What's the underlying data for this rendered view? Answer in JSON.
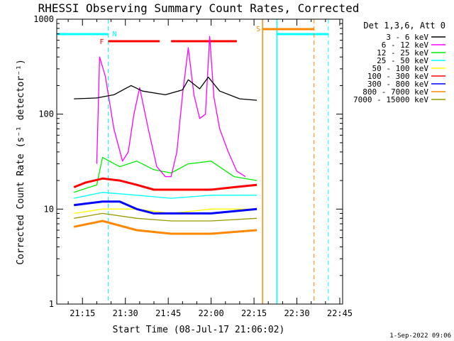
{
  "chart_data": {
    "type": "line",
    "title": "RHESSI Observing Summary Count Rates, Corrected",
    "xlabel": "Start Time (08-Jul-17 21:06:02)",
    "ylabel": "Corrected Count Rate (s⁻¹ detector⁻¹)",
    "timestamp": "1-Sep-2022 09:06",
    "y_scale": "log",
    "ylim": [
      1,
      1000
    ],
    "xlim": [
      "21:06",
      "22:46"
    ],
    "x_ticks": [
      "21:15",
      "21:30",
      "21:45",
      "22:00",
      "22:15",
      "22:30",
      "22:45"
    ],
    "y_ticks": [
      {
        "value": 1,
        "label": "1"
      },
      {
        "value": 10,
        "label": "10"
      },
      {
        "value": 100,
        "label": "100"
      },
      {
        "value": 1000,
        "label": "1000"
      }
    ],
    "legend_title": "Det 1,3,6, Att 0",
    "legend_position": "right",
    "series": [
      {
        "name": "3 - 6 keV",
        "color": "#000000",
        "x": [
          "21:12",
          "21:20",
          "21:26",
          "21:32",
          "21:36",
          "21:44",
          "21:50",
          "21:52",
          "21:56",
          "21:59",
          "22:03",
          "22:10",
          "22:16"
        ],
        "y": [
          145,
          148,
          160,
          200,
          175,
          160,
          180,
          230,
          185,
          245,
          175,
          145,
          140
        ]
      },
      {
        "name": "6 - 12 keV",
        "color": "#ff00ff",
        "x": [
          "21:20",
          "21:21",
          "21:23",
          "21:26",
          "21:29",
          "21:31",
          "21:33",
          "21:35",
          "21:38",
          "21:41",
          "21:44",
          "21:46",
          "21:48",
          "21:50",
          "21:52",
          "21:54",
          "21:56",
          "21:58",
          "21:59.5",
          "22:01",
          "22:03",
          "22:06",
          "22:09",
          "22:12"
        ],
        "y": [
          30,
          400,
          250,
          70,
          32,
          40,
          100,
          190,
          70,
          28,
          22,
          22,
          40,
          160,
          500,
          160,
          90,
          100,
          660,
          150,
          70,
          40,
          25,
          22
        ]
      },
      {
        "name": "12 - 25 keV",
        "color": "#00ee00",
        "x": [
          "21:12",
          "21:20",
          "21:22",
          "21:28",
          "21:34",
          "21:40",
          "21:46",
          "21:52",
          "22:00",
          "22:08",
          "22:16"
        ],
        "y": [
          15,
          18,
          35,
          28,
          32,
          26,
          24,
          30,
          32,
          22,
          20
        ]
      },
      {
        "name": "25 - 50 keV",
        "color": "#00ffff",
        "x": [
          "21:12",
          "21:22",
          "21:34",
          "21:46",
          "22:00",
          "22:16"
        ],
        "y": [
          13,
          15,
          14,
          13,
          14,
          14
        ]
      },
      {
        "name": "50 - 100 keV",
        "color": "#ffff00",
        "x": [
          "21:12",
          "21:22",
          "21:34",
          "21:46",
          "22:00",
          "22:16"
        ],
        "y": [
          9,
          10,
          10,
          9,
          10,
          10
        ]
      },
      {
        "name": "100 - 300 keV",
        "color": "#ff0000",
        "x": [
          "21:12",
          "21:16",
          "21:22",
          "21:28",
          "21:34",
          "21:40",
          "21:46",
          "21:52",
          "22:00",
          "22:08",
          "22:16"
        ],
        "y": [
          17,
          19,
          21,
          20,
          18,
          16,
          16,
          16,
          16,
          17,
          18
        ]
      },
      {
        "name": "300 - 800 keV",
        "color": "#0000ff",
        "x": [
          "21:12",
          "21:22",
          "21:28",
          "21:34",
          "21:40",
          "21:46",
          "22:00",
          "22:16"
        ],
        "y": [
          11,
          12,
          12,
          10,
          9,
          9,
          9,
          10
        ]
      },
      {
        "name": "800 - 7000 keV",
        "color": "#ff8800",
        "x": [
          "21:12",
          "21:22",
          "21:34",
          "21:46",
          "22:00",
          "22:16"
        ],
        "y": [
          6.5,
          7.5,
          6,
          5.5,
          5.5,
          6
        ]
      },
      {
        "name": "7000 - 15000 keV",
        "color": "#999900",
        "x": [
          "21:12",
          "21:22",
          "21:34",
          "21:46",
          "22:00",
          "22:16"
        ],
        "y": [
          8,
          9,
          8,
          7.5,
          7.5,
          8
        ]
      }
    ],
    "night_intervals": [
      {
        "label": "N",
        "start": "21:06",
        "end": "21:24",
        "color": "#00ffff"
      },
      {
        "label": "",
        "start": "22:23",
        "end": "22:41",
        "color": "#00ffff"
      }
    ],
    "flare_bars": [
      {
        "label": "F",
        "start": "21:24",
        "end": "21:42",
        "color": "#ff0000"
      },
      {
        "label": "",
        "start": "21:46",
        "end": "22:09",
        "color": "#ff0000"
      }
    ],
    "saa_intervals": [
      {
        "label": "S",
        "start": "22:18",
        "end": "22:36",
        "color": "#ff8800"
      }
    ]
  }
}
